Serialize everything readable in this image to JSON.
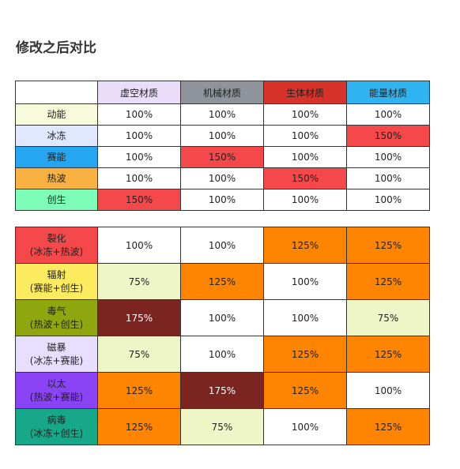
{
  "title": "修改之后对比",
  "header": {
    "corner": "",
    "columns": [
      {
        "label": "虚空材质",
        "color": "#e9ddf9"
      },
      {
        "label": "机械材质",
        "color": "#8e939c"
      },
      {
        "label": "生体材质",
        "color": "#d8332b"
      },
      {
        "label": "能量材质",
        "color": "#2fb4f1"
      }
    ]
  },
  "section1": [
    {
      "label": "动能",
      "color": "#f8fbd9",
      "values": [
        "100%",
        "100%",
        "100%",
        "100%"
      ],
      "styles": [
        "",
        "",
        "",
        ""
      ]
    },
    {
      "label": "冰冻",
      "color": "#dfe8ff",
      "values": [
        "100%",
        "100%",
        "100%",
        "150%"
      ],
      "styles": [
        "",
        "",
        "",
        "hi"
      ]
    },
    {
      "label": "赛能",
      "color": "#24a7f0",
      "values": [
        "100%",
        "150%",
        "100%",
        "100%"
      ],
      "styles": [
        "",
        "hi",
        "",
        ""
      ]
    },
    {
      "label": "热波",
      "color": "#f9b141",
      "values": [
        "100%",
        "100%",
        "150%",
        "100%"
      ],
      "styles": [
        "",
        "",
        "hi",
        ""
      ]
    },
    {
      "label": "创生",
      "color": "#7efdb8",
      "values": [
        "150%",
        "100%",
        "100%",
        "100%"
      ],
      "styles": [
        "hi",
        "",
        "",
        ""
      ]
    }
  ],
  "section2": [
    {
      "label": "裂化",
      "sub": "(冰冻+热波)",
      "color": "#f4484a",
      "values": [
        "100%",
        "100%",
        "125%",
        "125%"
      ],
      "styles": [
        "",
        "",
        "mid",
        "mid"
      ]
    },
    {
      "label": "辐射",
      "sub": "(赛能+创生)",
      "color": "#fceb5e",
      "values": [
        "75%",
        "125%",
        "100%",
        "125%"
      ],
      "styles": [
        "low",
        "mid",
        "",
        "mid"
      ]
    },
    {
      "label": "毒气",
      "sub": "(热波+创生)",
      "color": "#8fa60f",
      "values": [
        "175%",
        "100%",
        "100%",
        "75%"
      ],
      "styles": [
        "top",
        "",
        "",
        "low"
      ]
    },
    {
      "label": "磁暴",
      "sub": "(冰冻+赛能)",
      "color": "#e8deff",
      "values": [
        "75%",
        "100%",
        "125%",
        "125%"
      ],
      "styles": [
        "low",
        "",
        "mid",
        "mid"
      ]
    },
    {
      "label": "以太",
      "sub": "(热波+赛能)",
      "color": "#8a44f5",
      "values": [
        "125%",
        "175%",
        "125%",
        "100%"
      ],
      "styles": [
        "mid",
        "top",
        "mid",
        ""
      ]
    },
    {
      "label": "病毒",
      "sub": "(冰冻+创生)",
      "color": "#16a889",
      "values": [
        "125%",
        "75%",
        "100%",
        "125%"
      ],
      "styles": [
        "mid",
        "low",
        "",
        "mid"
      ]
    }
  ]
}
